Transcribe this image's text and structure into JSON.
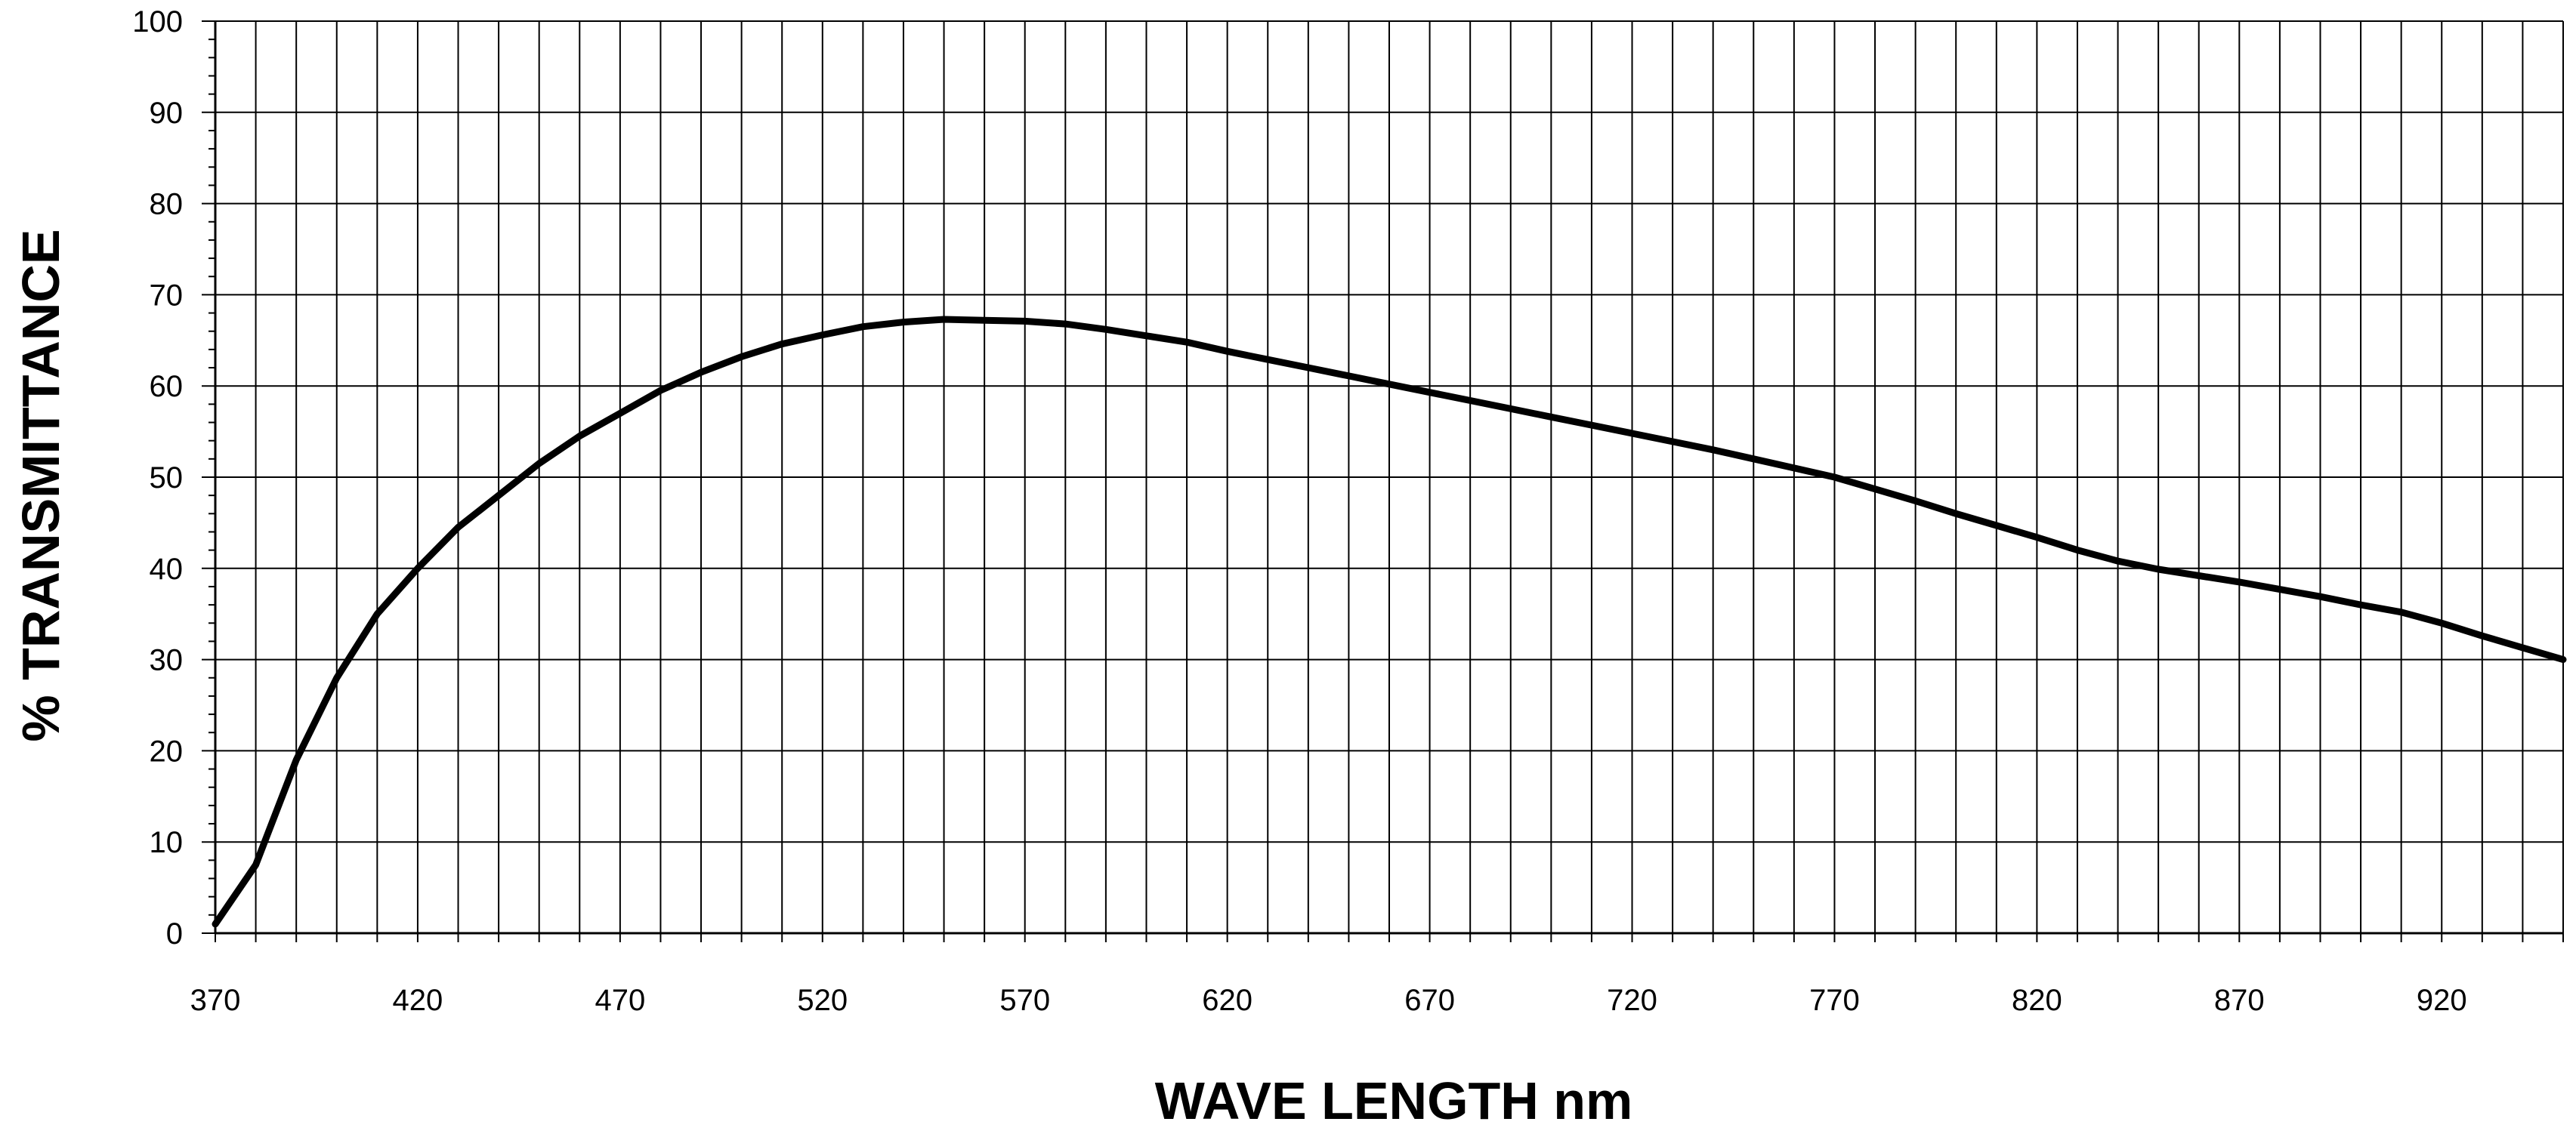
{
  "chart_data": {
    "type": "line",
    "title": "",
    "xlabel": "WAVE LENGTH nm",
    "ylabel": "% TRANSMITTANCE",
    "xlim": [
      370,
      950
    ],
    "ylim": [
      0,
      100
    ],
    "x_ticks": [
      370,
      420,
      470,
      520,
      570,
      620,
      670,
      720,
      770,
      820,
      870,
      920
    ],
    "y_ticks": [
      0,
      10,
      20,
      30,
      40,
      50,
      60,
      70,
      80,
      90,
      100
    ],
    "x_minor_step": 10,
    "y_minor_step": 2,
    "grid": true,
    "legend": "none",
    "colors": {
      "line": "#000000",
      "grid": "#000000",
      "background": "#ffffff"
    },
    "series": [
      {
        "x": [
          370,
          380,
          390,
          400,
          410,
          420,
          430,
          440,
          450,
          460,
          470,
          480,
          490,
          500,
          510,
          520,
          530,
          540,
          550,
          560,
          570,
          580,
          590,
          600,
          610,
          620,
          630,
          640,
          650,
          660,
          670,
          680,
          690,
          700,
          710,
          720,
          730,
          740,
          750,
          760,
          770,
          780,
          790,
          800,
          810,
          820,
          830,
          840,
          850,
          860,
          870,
          880,
          890,
          900,
          910,
          920,
          930,
          940,
          950
        ],
        "y": [
          1,
          7.5,
          19,
          28,
          35,
          40,
          44.5,
          48,
          51.5,
          54.5,
          57,
          59.5,
          61.5,
          63.2,
          64.6,
          65.6,
          66.5,
          67,
          67.3,
          67.2,
          67.1,
          66.8,
          66.2,
          65.5,
          64.8,
          63.8,
          62.9,
          62,
          61.1,
          60.2,
          59.3,
          58.4,
          57.5,
          56.6,
          55.7,
          54.8,
          53.9,
          53,
          52,
          51,
          50,
          48.7,
          47.4,
          46,
          44.7,
          43.4,
          42,
          40.8,
          39.9,
          39.2,
          38.5,
          37.7,
          36.9,
          36,
          35.2,
          34,
          32.6,
          31.3,
          30
        ]
      }
    ]
  }
}
